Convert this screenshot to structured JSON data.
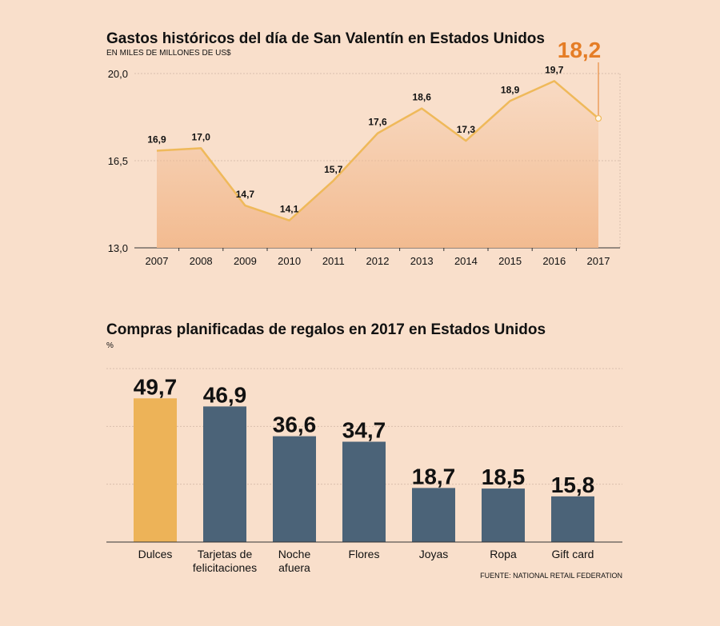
{
  "chart_data": [
    {
      "type": "line",
      "title": "Gastos históricos del día de San Valentín en Estados Unidos",
      "subtitle": "EN MILES DE MILLONES DE US$",
      "x": [
        "2007",
        "2008",
        "2009",
        "2010",
        "2011",
        "2012",
        "2013",
        "2014",
        "2015",
        "2016",
        "2017"
      ],
      "values": [
        16.9,
        17.0,
        14.7,
        14.1,
        15.7,
        17.6,
        18.6,
        17.3,
        18.9,
        19.7,
        18.2
      ],
      "labels": [
        "16,9",
        "17,0",
        "14,7",
        "14,1",
        "15,7",
        "17,6",
        "18,6",
        "17,3",
        "18,9",
        "19,7",
        "18,2"
      ],
      "ylim": [
        13.0,
        20.0
      ],
      "yticks": [
        13.0,
        16.5,
        20.0
      ],
      "ytick_labels": [
        "13,0",
        "16,5",
        "20,0"
      ],
      "highlight_index": 10,
      "colors": {
        "line": "#efb95a",
        "fill": "#f2b98d",
        "highlight": "#e57d26",
        "grid": "#d9bfad"
      }
    },
    {
      "type": "bar",
      "title": "Compras planificadas de regalos en 2017 en Estados Unidos",
      "subtitle": "%",
      "categories": [
        "Dulces",
        "Tarjetas de felicitaciones",
        "Noche afuera",
        "Flores",
        "Joyas",
        "Ropa",
        "Gift card"
      ],
      "category_lines": [
        [
          "Dulces"
        ],
        [
          "Tarjetas de",
          "felicitaciones"
        ],
        [
          "Noche",
          "afuera"
        ],
        [
          "Flores"
        ],
        [
          "Joyas"
        ],
        [
          "Ropa"
        ],
        [
          "Gift card"
        ]
      ],
      "values": [
        49.7,
        46.9,
        36.6,
        34.7,
        18.7,
        18.5,
        15.8
      ],
      "labels": [
        "49,7",
        "46,9",
        "36,6",
        "34,7",
        "18,7",
        "18,5",
        "15,8"
      ],
      "ylim": [
        0,
        60
      ],
      "source": "FUENTE: NATIONAL RETAIL FEDERATION",
      "colors": {
        "highlight": "#edb358",
        "bar": "#4b6378",
        "grid": "#d9bfad"
      }
    }
  ]
}
